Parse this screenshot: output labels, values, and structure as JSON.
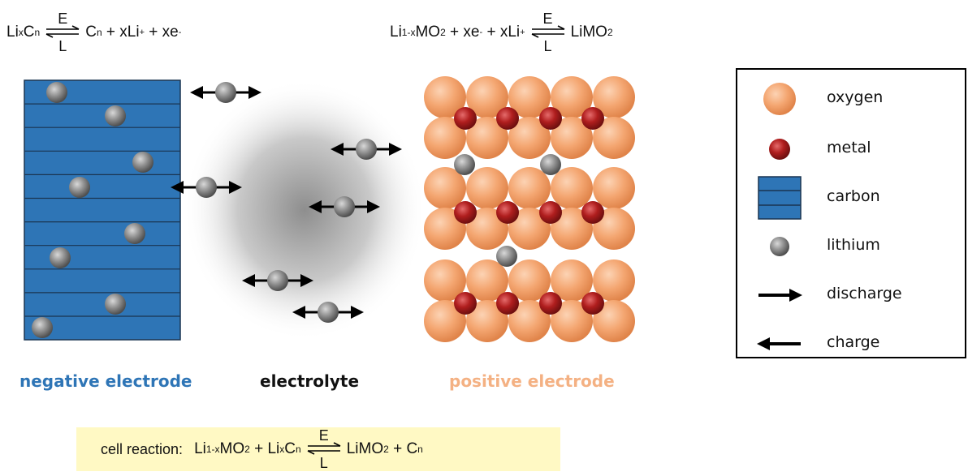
{
  "equations": {
    "negative": {
      "lhs_main": "Li",
      "lhs_sub1": "x",
      "lhs_c": "C",
      "lhs_sub2": "n",
      "rhs_c": "C",
      "rhs_sub": "n",
      "rhs_rest": " + xLi",
      "rhs_sup1": "+",
      "rhs_rest2": " + xe",
      "rhs_sup2": "-",
      "top_label": "E",
      "bottom_label": "L"
    },
    "positive": {
      "lhs_li": "Li",
      "lhs_sub": "1-x",
      "lhs_mo": "MO",
      "lhs_sub2": "2",
      "lhs_rest": " + xe",
      "lhs_sup1": "-",
      "lhs_rest2": " + xLi",
      "lhs_sup2": "+",
      "rhs_main": "LiMO",
      "rhs_sub": "2",
      "top_label": "E",
      "bottom_label": "L"
    }
  },
  "region_labels": {
    "negative": "negative electrode",
    "electrolyte": "electrolyte",
    "positive": "positive electrode"
  },
  "legend": {
    "items": [
      {
        "icon": "oxygen-sphere-icon",
        "label": "oxygen"
      },
      {
        "icon": "metal-sphere-icon",
        "label": "metal"
      },
      {
        "icon": "carbon-layers-icon",
        "label": "carbon"
      },
      {
        "icon": "lithium-sphere-icon",
        "label": "lithium"
      },
      {
        "icon": "arrow-right-icon",
        "label": "discharge"
      },
      {
        "icon": "arrow-left-icon",
        "label": "charge"
      }
    ]
  },
  "cell_reaction": {
    "label": "cell reaction:",
    "li": "Li",
    "sub1": "1-x",
    "mo": "MO",
    "sub2": "2",
    "plus1": " + Li",
    "sub3": "x",
    "c": "C",
    "sub4": "n",
    "rhs": "LiMO",
    "rhs_sub": "2",
    "plus2": " + C",
    "rhs_sub2": "n",
    "top_label": "E",
    "bottom_label": "L"
  },
  "colors": {
    "carbon": "#2e75b6",
    "carbon_lines": "#1a3550",
    "oxygen": "#f4a671",
    "metal": "#b01e1e",
    "lithium": "#8a8a8a",
    "negative_label": "#2e75b6",
    "positive_label": "#f4b183",
    "cell_bg": "#fff9c4"
  }
}
